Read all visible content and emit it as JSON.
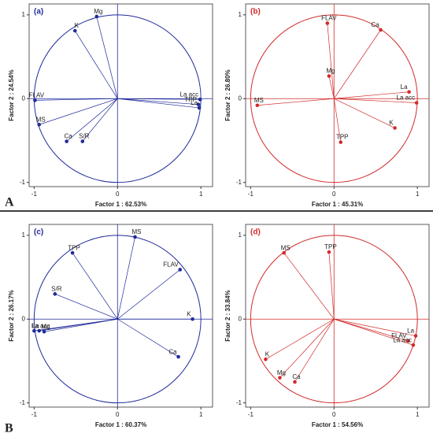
{
  "figure_labels": [
    "A",
    "B"
  ],
  "chart_data": [
    {
      "type": "loading-plot",
      "label": "(a)",
      "xlabel": "Factor 1 : 62.53%",
      "ylabel": "Factor 2 : 24.54%",
      "color": "#1f2a9a",
      "labels": [
        "K",
        "Mg",
        "FLAV",
        "MS",
        "Ca",
        "S/R",
        "La acc",
        "TPP",
        "La"
      ],
      "x": [
        -0.51,
        -0.25,
        -0.99,
        -0.94,
        -0.61,
        -0.42,
        0.99,
        0.97,
        0.98
      ],
      "values": [
        0.81,
        0.98,
        -0.02,
        -0.31,
        -0.51,
        -0.51,
        -0.01,
        -0.07,
        -0.11
      ],
      "xlim": [
        -1.06,
        1.14
      ],
      "ylim": [
        -1.05,
        1.13
      ],
      "xticks": [
        -1,
        0,
        1
      ],
      "yticks": [
        -1,
        0,
        1
      ]
    },
    {
      "type": "loading-plot",
      "label": "(b)",
      "xlabel": "Factor 1 : 45.31%",
      "ylabel": "Factor 2 : 26.80%",
      "color": "#d22b2b",
      "labels": [
        "FLAV",
        "Mg",
        "Ca",
        "La",
        "La acc",
        "MS",
        "K",
        "TPP"
      ],
      "x": [
        -0.08,
        -0.06,
        0.56,
        0.9,
        0.99,
        -0.92,
        0.73,
        0.08
      ],
      "values": [
        0.9,
        0.27,
        0.82,
        0.08,
        -0.05,
        -0.08,
        -0.35,
        -0.52
      ],
      "xlim": [
        -1.06,
        1.14
      ],
      "ylim": [
        -1.05,
        1.13
      ],
      "xticks": [
        -1,
        0,
        1
      ],
      "yticks": [
        -1,
        0,
        1
      ]
    },
    {
      "type": "loading-plot",
      "label": "(c)",
      "xlabel": "Factor 1 : 60.37%",
      "ylabel": "Factor 2 : 26.17%",
      "color": "#1f2a9a",
      "labels": [
        "TPP",
        "MS",
        "FLAV",
        "S/R",
        "K",
        "Ca",
        "La acc",
        "La",
        "Mg"
      ],
      "x": [
        -0.54,
        0.21,
        0.75,
        -0.75,
        0.9,
        0.73,
        -0.94,
        -1.0,
        -0.88
      ],
      "values": [
        0.79,
        0.98,
        0.59,
        0.3,
        0.0,
        -0.45,
        -0.14,
        -0.14,
        -0.15
      ],
      "xlim": [
        -1.06,
        1.14
      ],
      "ylim": [
        -1.05,
        1.13
      ],
      "xticks": [
        -1,
        0,
        1
      ],
      "yticks": [
        -1,
        0,
        1
      ]
    },
    {
      "type": "loading-plot",
      "label": "(d)",
      "xlabel": "Factor 1 : 54.56%",
      "ylabel": "Factor 2 : 33.84%",
      "color": "#d22b2b",
      "labels": [
        "MS",
        "TPP",
        "La",
        "FLAV",
        "La acc",
        "K",
        "Mg",
        "Ca"
      ],
      "x": [
        -0.6,
        -0.06,
        0.98,
        0.89,
        0.95,
        -0.82,
        -0.65,
        -0.47
      ],
      "values": [
        0.79,
        0.8,
        -0.2,
        -0.26,
        -0.31,
        -0.48,
        -0.7,
        -0.75
      ],
      "xlim": [
        -1.06,
        1.14
      ],
      "ylim": [
        -1.05,
        1.13
      ],
      "xticks": [
        -1,
        0,
        1
      ],
      "yticks": [
        -1,
        0,
        1
      ]
    }
  ]
}
